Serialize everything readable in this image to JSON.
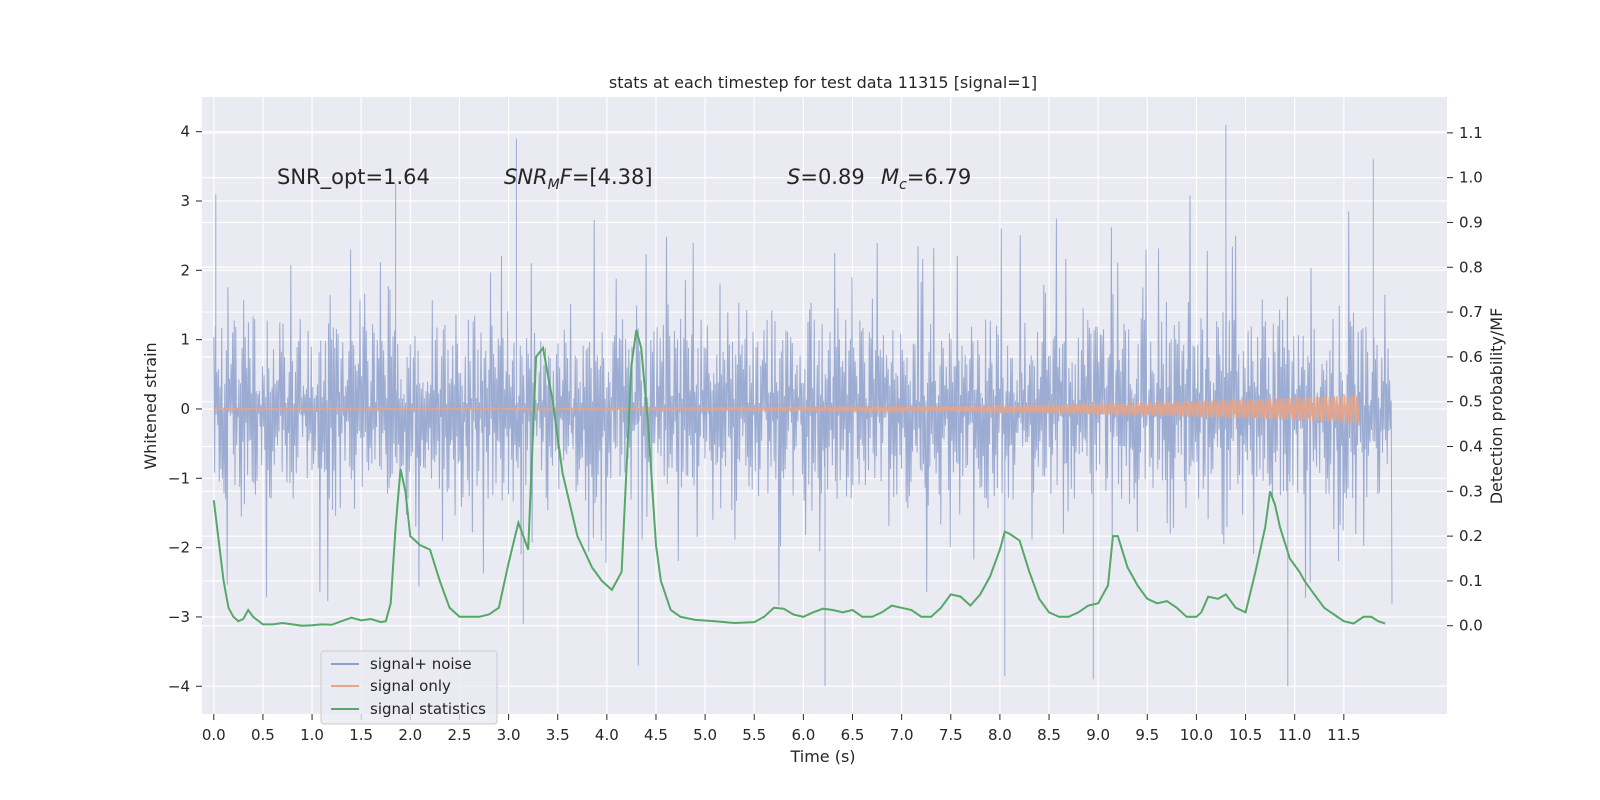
{
  "chart_data": {
    "type": "line",
    "title": "stats at each timestep for test data 11315 [signal=1]",
    "xlabel": "Time (s)",
    "ylabel_left": "Whitened strain",
    "ylabel_right": "Detection probability/MF",
    "xlim": [
      -0.12,
      12.55
    ],
    "ylim_left": [
      -4.4,
      4.5
    ],
    "ylim_right": [
      -0.197,
      1.18
    ],
    "x_ticks": [
      0.0,
      0.5,
      1.0,
      1.5,
      2.0,
      2.5,
      3.0,
      3.5,
      4.0,
      4.5,
      5.0,
      5.5,
      6.0,
      6.5,
      7.0,
      7.5,
      8.0,
      8.5,
      9.0,
      9.5,
      10.0,
      10.5,
      11.0,
      11.5
    ],
    "x_tick_labels": [
      "0.0",
      "0.5",
      "1.0",
      "1.5",
      "2.0",
      "2.5",
      "3.0",
      "3.5",
      "4.0",
      "4.5",
      "5.0",
      "5.5",
      "6.0",
      "6.5",
      "7.0",
      "7.5",
      "8.0",
      "8.5",
      "9.0",
      "9.5",
      "10.0",
      "10.5",
      "11.0",
      "11.5"
    ],
    "y_left_ticks": [
      -4,
      -3,
      -2,
      -1,
      0,
      1,
      2,
      3,
      4
    ],
    "y_left_tick_labels": [
      "−4",
      "−3",
      "−2",
      "−1",
      "0",
      "1",
      "2",
      "3",
      "4"
    ],
    "y_right_ticks": [
      0.0,
      0.1,
      0.2,
      0.3,
      0.4,
      0.5,
      0.6,
      0.7,
      0.8,
      0.9,
      1.0,
      1.1
    ],
    "y_right_tick_labels": [
      "0.0",
      "0.1",
      "0.2",
      "0.3",
      "0.4",
      "0.5",
      "0.6",
      "0.7",
      "0.8",
      "0.9",
      "1.0",
      "1.1"
    ],
    "grid": true,
    "legend_position": "lower-left",
    "annotations": {
      "snr_opt": "SNR_opt=1.64",
      "snr_mf_italic": "SNR",
      "snr_mf_sub": "M",
      "snr_mf_italic_f": "F",
      "snr_mf_value": "=[4.38]",
      "s_italic": "S",
      "s_value": "=0.89",
      "mc_italic": "M",
      "mc_sub": "c",
      "mc_value": "=6.79"
    },
    "series": [
      {
        "name": "signal+ noise",
        "axis": "left",
        "color": "#8da0cb",
        "time_range": [
          0.0,
          11.99
        ],
        "approx_band": {
          "core": [
            -1.3,
            1.3
          ],
          "typical_peaks": [
            -2.3,
            2.3
          ]
        },
        "notable_peaks": [
          {
            "x": 0.02,
            "y": 3.1
          },
          {
            "x": 1.85,
            "y": 3.25
          },
          {
            "x": 3.08,
            "y": 3.9
          },
          {
            "x": 3.15,
            "y": -3.1
          },
          {
            "x": 4.32,
            "y": -3.7
          },
          {
            "x": 6.22,
            "y": -4.0
          },
          {
            "x": 8.05,
            "y": -3.85
          },
          {
            "x": 8.95,
            "y": -3.9
          },
          {
            "x": 10.3,
            "y": 4.1
          },
          {
            "x": 10.93,
            "y": -4.0
          },
          {
            "x": 11.8,
            "y": 3.6
          }
        ]
      },
      {
        "name": "signal only",
        "axis": "left",
        "color": "#e8a487",
        "time_range": [
          0.0,
          11.65
        ],
        "approx_amplitude": {
          "start": 0.01,
          "end": 0.2
        }
      },
      {
        "name": "signal statistics",
        "axis": "right",
        "color": "#55a868",
        "points": [
          [
            0.0,
            0.28
          ],
          [
            0.1,
            0.1
          ],
          [
            0.15,
            0.04
          ],
          [
            0.2,
            0.02
          ],
          [
            0.25,
            0.01
          ],
          [
            0.3,
            0.015
          ],
          [
            0.35,
            0.035
          ],
          [
            0.4,
            0.02
          ],
          [
            0.5,
            0.003
          ],
          [
            0.6,
            0.003
          ],
          [
            0.7,
            0.006
          ],
          [
            0.8,
            0.003
          ],
          [
            0.9,
            0.0
          ],
          [
            1.0,
            0.001
          ],
          [
            1.1,
            0.003
          ],
          [
            1.2,
            0.002
          ],
          [
            1.3,
            0.01
          ],
          [
            1.4,
            0.018
          ],
          [
            1.5,
            0.012
          ],
          [
            1.6,
            0.015
          ],
          [
            1.7,
            0.008
          ],
          [
            1.75,
            0.01
          ],
          [
            1.8,
            0.05
          ],
          [
            1.85,
            0.22
          ],
          [
            1.9,
            0.35
          ],
          [
            1.95,
            0.3
          ],
          [
            2.0,
            0.2
          ],
          [
            2.1,
            0.18
          ],
          [
            2.2,
            0.17
          ],
          [
            2.3,
            0.1
          ],
          [
            2.4,
            0.04
          ],
          [
            2.5,
            0.02
          ],
          [
            2.6,
            0.02
          ],
          [
            2.7,
            0.02
          ],
          [
            2.8,
            0.025
          ],
          [
            2.9,
            0.04
          ],
          [
            3.0,
            0.14
          ],
          [
            3.1,
            0.23
          ],
          [
            3.15,
            0.2
          ],
          [
            3.2,
            0.17
          ],
          [
            3.28,
            0.6
          ],
          [
            3.35,
            0.62
          ],
          [
            3.45,
            0.5
          ],
          [
            3.55,
            0.34
          ],
          [
            3.7,
            0.2
          ],
          [
            3.85,
            0.13
          ],
          [
            3.95,
            0.1
          ],
          [
            4.05,
            0.08
          ],
          [
            4.15,
            0.12
          ],
          [
            4.25,
            0.58
          ],
          [
            4.3,
            0.66
          ],
          [
            4.35,
            0.62
          ],
          [
            4.42,
            0.45
          ],
          [
            4.5,
            0.18
          ],
          [
            4.55,
            0.1
          ],
          [
            4.65,
            0.035
          ],
          [
            4.75,
            0.02
          ],
          [
            4.9,
            0.013
          ],
          [
            5.1,
            0.01
          ],
          [
            5.3,
            0.006
          ],
          [
            5.5,
            0.008
          ],
          [
            5.6,
            0.02
          ],
          [
            5.7,
            0.04
          ],
          [
            5.8,
            0.038
          ],
          [
            5.9,
            0.025
          ],
          [
            6.0,
            0.02
          ],
          [
            6.1,
            0.03
          ],
          [
            6.2,
            0.038
          ],
          [
            6.3,
            0.035
          ],
          [
            6.4,
            0.03
          ],
          [
            6.5,
            0.035
          ],
          [
            6.6,
            0.02
          ],
          [
            6.7,
            0.02
          ],
          [
            6.8,
            0.03
          ],
          [
            6.9,
            0.045
          ],
          [
            7.0,
            0.04
          ],
          [
            7.1,
            0.035
          ],
          [
            7.2,
            0.02
          ],
          [
            7.3,
            0.02
          ],
          [
            7.4,
            0.04
          ],
          [
            7.5,
            0.07
          ],
          [
            7.6,
            0.065
          ],
          [
            7.7,
            0.045
          ],
          [
            7.8,
            0.07
          ],
          [
            7.9,
            0.11
          ],
          [
            8.0,
            0.17
          ],
          [
            8.05,
            0.21
          ],
          [
            8.1,
            0.205
          ],
          [
            8.2,
            0.19
          ],
          [
            8.3,
            0.12
          ],
          [
            8.4,
            0.06
          ],
          [
            8.5,
            0.03
          ],
          [
            8.6,
            0.02
          ],
          [
            8.7,
            0.02
          ],
          [
            8.8,
            0.03
          ],
          [
            8.9,
            0.045
          ],
          [
            9.0,
            0.05
          ],
          [
            9.1,
            0.09
          ],
          [
            9.15,
            0.2
          ],
          [
            9.2,
            0.2
          ],
          [
            9.3,
            0.13
          ],
          [
            9.35,
            0.11
          ],
          [
            9.4,
            0.09
          ],
          [
            9.5,
            0.06
          ],
          [
            9.6,
            0.05
          ],
          [
            9.7,
            0.055
          ],
          [
            9.8,
            0.04
          ],
          [
            9.9,
            0.02
          ],
          [
            10.0,
            0.02
          ],
          [
            10.05,
            0.03
          ],
          [
            10.12,
            0.065
          ],
          [
            10.22,
            0.06
          ],
          [
            10.3,
            0.07
          ],
          [
            10.4,
            0.04
          ],
          [
            10.5,
            0.03
          ],
          [
            10.6,
            0.12
          ],
          [
            10.7,
            0.22
          ],
          [
            10.75,
            0.3
          ],
          [
            10.8,
            0.27
          ],
          [
            10.85,
            0.22
          ],
          [
            10.95,
            0.15
          ],
          [
            11.05,
            0.12
          ],
          [
            11.1,
            0.1
          ],
          [
            11.2,
            0.07
          ],
          [
            11.3,
            0.04
          ],
          [
            11.4,
            0.025
          ],
          [
            11.5,
            0.01
          ],
          [
            11.6,
            0.005
          ],
          [
            11.7,
            0.02
          ],
          [
            11.78,
            0.02
          ],
          [
            11.85,
            0.01
          ],
          [
            11.92,
            0.005
          ]
        ]
      }
    ]
  }
}
